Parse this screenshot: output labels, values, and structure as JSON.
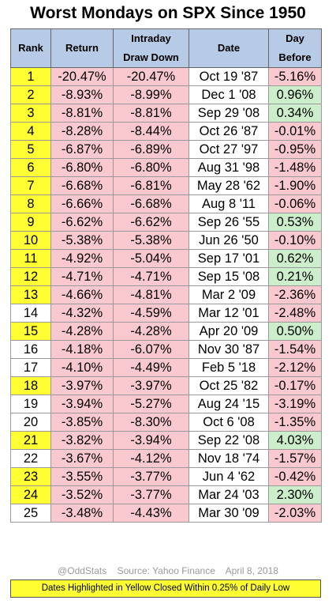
{
  "title": "Worst Mondays on SPX Since 1950",
  "colors": {
    "header": "#b7cbe6",
    "highlight": "#ffff33",
    "negative": "#f9c9cf",
    "positive": "#cdeecb"
  },
  "chart_data": {
    "type": "table",
    "title": "Worst Mondays on SPX Since 1950",
    "columns": [
      {
        "line1": "Rank",
        "line2": ""
      },
      {
        "line1": "Return",
        "line2": ""
      },
      {
        "line1": "Intraday",
        "line2": "Draw Down"
      },
      {
        "line1": "Date",
        "line2": ""
      },
      {
        "line1": "Day",
        "line2": "Before"
      }
    ],
    "rows": [
      {
        "rank": "1",
        "ret": "-20.47%",
        "dd": "-20.47%",
        "date": "Oct 19 '87",
        "before": "-5.16%",
        "highlight": true
      },
      {
        "rank": "2",
        "ret": "-8.93%",
        "dd": "-8.99%",
        "date": "Dec 1 '08",
        "before": "0.96%",
        "highlight": true
      },
      {
        "rank": "3",
        "ret": "-8.81%",
        "dd": "-8.81%",
        "date": "Sep 29 '08",
        "before": "0.34%",
        "highlight": true
      },
      {
        "rank": "4",
        "ret": "-8.28%",
        "dd": "-8.44%",
        "date": "Oct 26 '87",
        "before": "-0.01%",
        "highlight": true
      },
      {
        "rank": "5",
        "ret": "-6.87%",
        "dd": "-6.89%",
        "date": "Oct 27 '97",
        "before": "-0.95%",
        "highlight": true
      },
      {
        "rank": "6",
        "ret": "-6.80%",
        "dd": "-6.80%",
        "date": "Aug 31 '98",
        "before": "-1.48%",
        "highlight": true
      },
      {
        "rank": "7",
        "ret": "-6.68%",
        "dd": "-6.81%",
        "date": "May 28 '62",
        "before": "-1.90%",
        "highlight": true
      },
      {
        "rank": "8",
        "ret": "-6.66%",
        "dd": "-6.68%",
        "date": "Aug 8 '11",
        "before": "-0.06%",
        "highlight": true
      },
      {
        "rank": "9",
        "ret": "-6.62%",
        "dd": "-6.62%",
        "date": "Sep 26 '55",
        "before": "0.53%",
        "highlight": true
      },
      {
        "rank": "10",
        "ret": "-5.38%",
        "dd": "-5.38%",
        "date": "Jun 26 '50",
        "before": "-0.10%",
        "highlight": true
      },
      {
        "rank": "11",
        "ret": "-4.92%",
        "dd": "-5.04%",
        "date": "Sep 17 '01",
        "before": "0.62%",
        "highlight": true
      },
      {
        "rank": "12",
        "ret": "-4.71%",
        "dd": "-4.71%",
        "date": "Sep 15 '08",
        "before": "0.21%",
        "highlight": true
      },
      {
        "rank": "13",
        "ret": "-4.66%",
        "dd": "-4.81%",
        "date": "Mar 2 '09",
        "before": "-2.36%",
        "highlight": true
      },
      {
        "rank": "14",
        "ret": "-4.32%",
        "dd": "-4.59%",
        "date": "Mar 12 '01",
        "before": "-2.48%",
        "highlight": false
      },
      {
        "rank": "15",
        "ret": "-4.28%",
        "dd": "-4.28%",
        "date": "Apr 20 '09",
        "before": "0.50%",
        "highlight": true
      },
      {
        "rank": "16",
        "ret": "-4.18%",
        "dd": "-6.07%",
        "date": "Nov 30 '87",
        "before": "-1.54%",
        "highlight": false
      },
      {
        "rank": "17",
        "ret": "-4.10%",
        "dd": "-4.49%",
        "date": "Feb 5 '18",
        "before": "-2.12%",
        "highlight": false
      },
      {
        "rank": "18",
        "ret": "-3.97%",
        "dd": "-3.97%",
        "date": "Oct 25 '82",
        "before": "-0.17%",
        "highlight": true
      },
      {
        "rank": "19",
        "ret": "-3.94%",
        "dd": "-5.27%",
        "date": "Aug 24 '15",
        "before": "-3.19%",
        "highlight": false
      },
      {
        "rank": "20",
        "ret": "-3.85%",
        "dd": "-8.30%",
        "date": "Oct 6 '08",
        "before": "-1.35%",
        "highlight": false
      },
      {
        "rank": "21",
        "ret": "-3.82%",
        "dd": "-3.94%",
        "date": "Sep 22 '08",
        "before": "4.03%",
        "highlight": true
      },
      {
        "rank": "22",
        "ret": "-3.67%",
        "dd": "-4.12%",
        "date": "Nov 18 '74",
        "before": "-1.57%",
        "highlight": false
      },
      {
        "rank": "23",
        "ret": "-3.55%",
        "dd": "-3.77%",
        "date": "Jun 4 '62",
        "before": "-0.42%",
        "highlight": true
      },
      {
        "rank": "24",
        "ret": "-3.52%",
        "dd": "-3.77%",
        "date": "Mar 24 '03",
        "before": "2.30%",
        "highlight": true
      },
      {
        "rank": "25",
        "ret": "-3.48%",
        "dd": "-4.43%",
        "date": "Mar 30 '09",
        "before": "-2.03%",
        "highlight": false
      }
    ]
  },
  "footer": {
    "source_line": "@OddStats    Source: Yahoo Finance    April 8, 2018",
    "note": "Dates Highlighted in Yellow Closed Within 0.25% of Daily Low"
  }
}
